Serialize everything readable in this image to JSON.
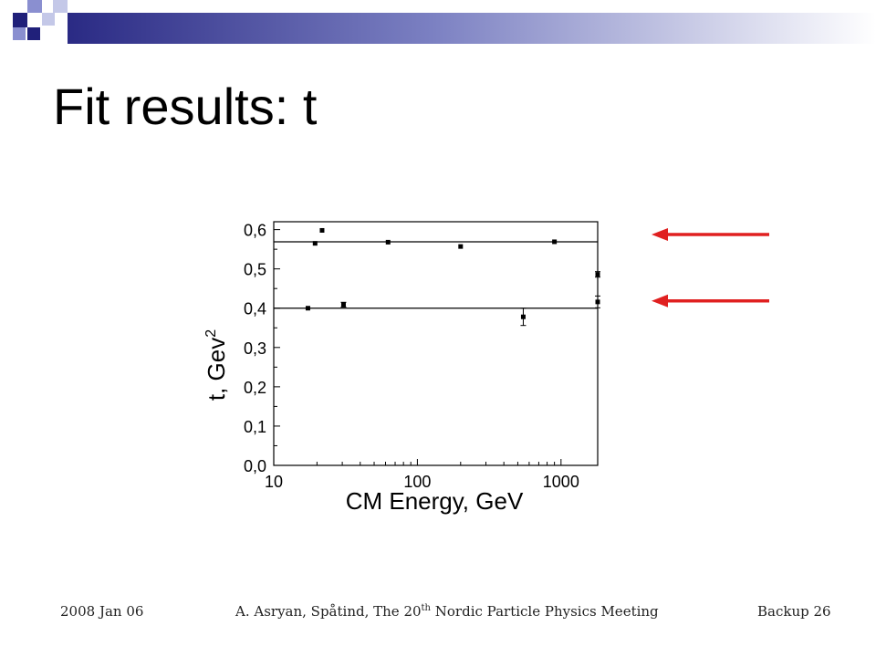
{
  "slide": {
    "title": "Fit results: t",
    "footer_date": "2008 Jan 06",
    "footer_authors_pre": "A. Asryan, Spåtind, The 20",
    "footer_authors_sup": "th",
    "footer_authors_post": " Nordic Particle Physics Meeting",
    "footer_page": "Backup 26"
  },
  "colors": {
    "arrow": "#e02020",
    "header_squares": [
      "#20207a",
      "#8a8fd0",
      "#c4c8e8"
    ]
  },
  "chart_data": {
    "type": "scatter",
    "title": "",
    "xlabel": "CM Energy, GeV",
    "ylabel_main": "t, Gev",
    "ylabel_sup": "2",
    "x_scale": "log",
    "xlim": [
      10,
      1800
    ],
    "ylim": [
      0.0,
      0.62
    ],
    "x_ticks": [
      10,
      100,
      1000
    ],
    "x_tick_labels": [
      "10",
      "100",
      "1000"
    ],
    "y_ticks": [
      0.0,
      0.1,
      0.2,
      0.3,
      0.4,
      0.5,
      0.6
    ],
    "y_tick_labels": [
      "0,0",
      "0,1",
      "0,2",
      "0,3",
      "0,4",
      "0,5",
      "0,6"
    ],
    "grid": false,
    "series": [
      {
        "points": [
          {
            "x": 19.4,
            "y": 0.565,
            "err": 0.003
          },
          {
            "x": 21.7,
            "y": 0.598,
            "err": 0.002
          },
          {
            "x": 62.5,
            "y": 0.568,
            "err": 0.002
          },
          {
            "x": 200,
            "y": 0.557,
            "err": 0.002
          },
          {
            "x": 900,
            "y": 0.569,
            "err": 0.002
          },
          {
            "x": 1800,
            "y": 0.486,
            "err": 0.007
          }
        ]
      },
      {
        "points": [
          {
            "x": 17.3,
            "y": 0.4,
            "err": 0.002
          },
          {
            "x": 30.6,
            "y": 0.409,
            "err": 0.006
          },
          {
            "x": 546,
            "y": 0.378,
            "err": 0.022
          },
          {
            "x": 1800,
            "y": 0.416,
            "err": 0.015
          }
        ]
      }
    ],
    "fit_lines": [
      0.569,
      0.4
    ],
    "annotations": [
      {
        "type": "arrow",
        "points_to_y": 0.569
      },
      {
        "type": "arrow",
        "points_to_y": 0.4
      }
    ]
  }
}
